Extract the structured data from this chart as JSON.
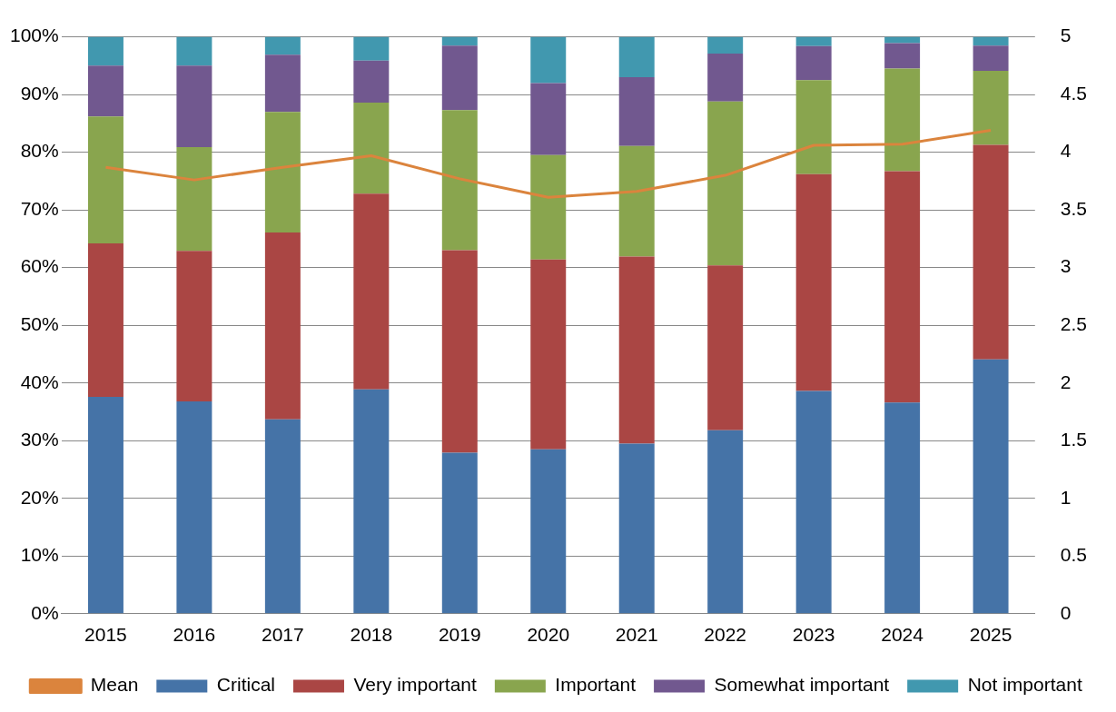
{
  "chart_data": {
    "type": "bar",
    "stacked": true,
    "categories": [
      "2015",
      "2016",
      "2017",
      "2018",
      "2019",
      "2020",
      "2021",
      "2022",
      "2023",
      "2024",
      "2025"
    ],
    "series": [
      {
        "name": "Critical",
        "color": "#4573a7",
        "values": [
          37.6,
          36.8,
          33.7,
          38.9,
          27.9,
          28.5,
          29.5,
          31.8,
          38.6,
          36.6,
          44.1
        ]
      },
      {
        "name": "Very important",
        "color": "#aa4644",
        "values": [
          26.6,
          26.1,
          32.4,
          33.9,
          35.1,
          32.9,
          32.4,
          28.6,
          37.6,
          40.1,
          37.2
        ]
      },
      {
        "name": "Important",
        "color": "#89a54e",
        "values": [
          22.0,
          18.0,
          20.9,
          15.8,
          24.3,
          18.1,
          19.2,
          28.4,
          16.3,
          17.8,
          12.8
        ]
      },
      {
        "name": "Somewhat important",
        "color": "#71588f",
        "values": [
          8.8,
          14.1,
          9.9,
          7.3,
          11.2,
          12.5,
          11.9,
          8.3,
          5.9,
          4.4,
          4.4
        ]
      },
      {
        "name": "Not important",
        "color": "#4198af",
        "values": [
          5.0,
          5.0,
          3.1,
          4.1,
          1.5,
          8.0,
          7.0,
          2.9,
          1.6,
          1.1,
          1.5
        ]
      },
      {
        "name": "Mean",
        "type": "line",
        "axis": "y2",
        "color": "#db843d",
        "values": [
          3.87,
          3.76,
          3.87,
          3.97,
          3.77,
          3.61,
          3.66,
          3.8,
          4.06,
          4.07,
          4.19
        ]
      }
    ],
    "ylim": [
      0,
      100
    ],
    "yticks": [
      {
        "value": 0,
        "label": "0%"
      },
      {
        "value": 10,
        "label": "10%"
      },
      {
        "value": 20,
        "label": "20%"
      },
      {
        "value": 30,
        "label": "30%"
      },
      {
        "value": 40,
        "label": "40%"
      },
      {
        "value": 50,
        "label": "50%"
      },
      {
        "value": 60,
        "label": "60%"
      },
      {
        "value": 70,
        "label": "70%"
      },
      {
        "value": 80,
        "label": "80%"
      },
      {
        "value": 90,
        "label": "90%"
      },
      {
        "value": 100,
        "label": "100%"
      }
    ],
    "y2lim": [
      0,
      5
    ],
    "y2ticks": [
      0,
      0.5,
      1,
      1.5,
      2,
      2.5,
      3,
      3.5,
      4,
      4.5,
      5
    ],
    "grid": "y",
    "legend": "bottom"
  }
}
